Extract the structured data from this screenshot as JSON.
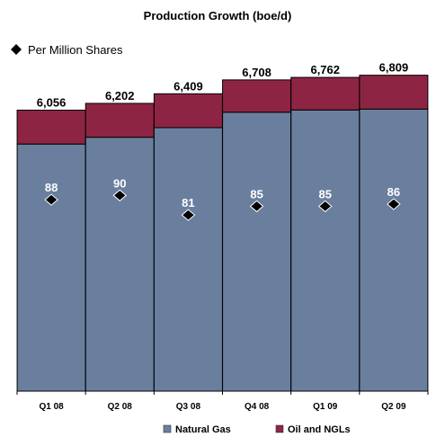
{
  "chart_data": {
    "type": "bar",
    "stacked": true,
    "title": "Production Growth (boe/d)",
    "categories": [
      "Q1 08",
      "Q2 08",
      "Q3 08",
      "Q4 08",
      "Q1 09",
      "Q2 09"
    ],
    "series": [
      {
        "name": "Natural Gas",
        "color": "#6a7f9e",
        "values": [
          5326,
          5472,
          5679,
          6011,
          6060,
          6079
        ]
      },
      {
        "name": "Oil and NGLs",
        "color": "#8e2443",
        "values": [
          730,
          730,
          730,
          697,
          702,
          730
        ]
      }
    ],
    "totals": [
      "6,056",
      "6,202",
      "6,409",
      "6,708",
      "6,762",
      "6,809"
    ],
    "per_million_shares": {
      "name": "Per Million Shares",
      "values": [
        88,
        90,
        81,
        85,
        85,
        86
      ],
      "labels": [
        "88",
        "90",
        "81",
        "85",
        "85",
        "86"
      ]
    },
    "ylim": [
      0,
      7500
    ],
    "pms_ylim": [
      0,
      160
    ],
    "grid": false,
    "legend": "bottom"
  }
}
